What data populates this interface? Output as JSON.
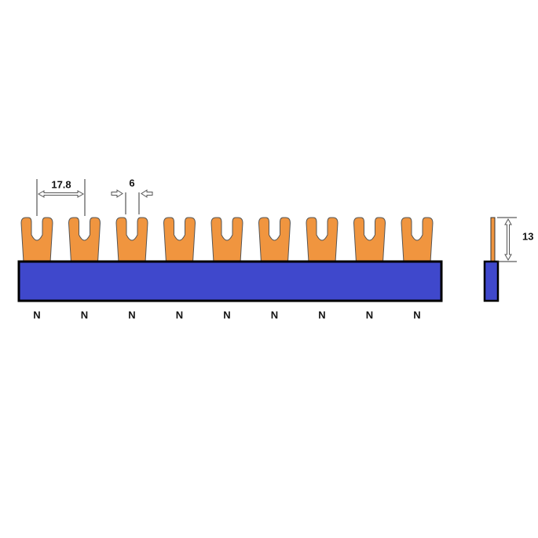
{
  "dimensions": {
    "pitch": "17.8",
    "width": "6",
    "height": "13"
  },
  "labels": [
    "N",
    "N",
    "N",
    "N",
    "N",
    "N",
    "N",
    "N",
    "N"
  ]
}
